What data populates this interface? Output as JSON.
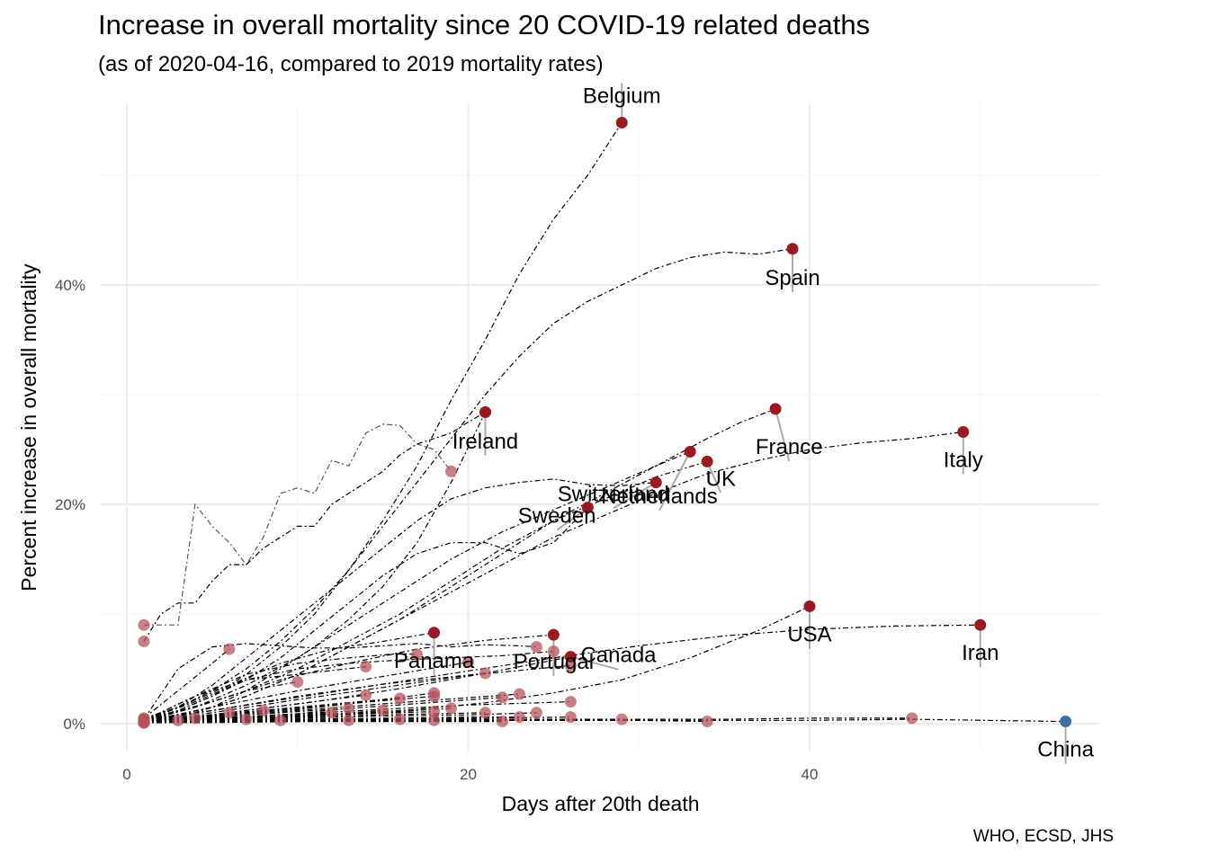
{
  "chart_data": {
    "type": "line",
    "title": "Increase in overall mortality since 20 COVID-19 related deaths",
    "subtitle": "(as of 2020-04-16, compared to 2019 mortality rates)",
    "caption": "WHO, ECSD, JHS",
    "xlabel": "Days after 20th death",
    "ylabel": "Percent increase in overall mortality",
    "xlim": [
      -1.5,
      57
    ],
    "ylim": [
      -2.5,
      56.5
    ],
    "x_ticks": [
      0,
      20,
      40
    ],
    "x_tick_labels": [
      "0",
      "20",
      "40"
    ],
    "y_ticks": [
      0,
      20,
      40
    ],
    "y_tick_labels": [
      "0%",
      "20%",
      "40%"
    ],
    "grid": true,
    "legend": "none",
    "colors": {
      "highlight_point": "#9b1a22",
      "other_point": "#b5545c",
      "china_point": "#3b6ea5",
      "line": "#000000",
      "grid": "#ebebeb",
      "label_segment": "#aaaaaa"
    },
    "labeled_series": [
      {
        "name": "Belgium",
        "x": [
          1,
          3,
          5,
          7,
          9,
          11,
          13,
          15,
          17,
          19,
          21,
          23,
          25,
          27,
          29
        ],
        "y": [
          0.4,
          1.2,
          2.5,
          4.5,
          7,
          10,
          14,
          18.5,
          23.5,
          29.5,
          35,
          41,
          46,
          50,
          54.8
        ],
        "label_dx": 0,
        "label_dy": 1.8
      },
      {
        "name": "Spain",
        "x": [
          1,
          3,
          5,
          7,
          9,
          11,
          13,
          15,
          17,
          19,
          21,
          23,
          25,
          27,
          29,
          31,
          33,
          35,
          37,
          39
        ],
        "y": [
          0.5,
          1.5,
          3,
          5,
          7.5,
          10.5,
          14,
          18,
          22,
          26,
          30,
          33.5,
          36.5,
          38.5,
          40,
          41.5,
          42.5,
          43,
          42.8,
          43.3
        ],
        "label_dx": 0,
        "label_dy": -3.3
      },
      {
        "name": "Ireland",
        "x": [
          1,
          3,
          5,
          7,
          9,
          11,
          13,
          15,
          17,
          19,
          21
        ],
        "y": [
          0.3,
          0.8,
          1.5,
          3,
          5,
          7,
          9.5,
          12.5,
          16.5,
          22,
          28.4
        ],
        "label_dx": 0,
        "label_dy": -3.3
      },
      {
        "name": "France",
        "x": [
          1,
          4,
          7,
          10,
          13,
          16,
          19,
          22,
          25,
          28,
          31,
          34,
          36,
          38
        ],
        "y": [
          0.3,
          1,
          2.5,
          4.5,
          7,
          9.5,
          12.5,
          15.5,
          18.5,
          21,
          23.5,
          26,
          27.5,
          28.7
        ],
        "label_dx": 0.8,
        "label_dy": -4.1
      },
      {
        "name": "Italy",
        "x": [
          1,
          4,
          7,
          10,
          13,
          16,
          19,
          22,
          25,
          28,
          31,
          34,
          37,
          40,
          43,
          46,
          49
        ],
        "y": [
          0.3,
          1,
          2.5,
          4.5,
          7,
          9.5,
          12,
          14.5,
          17,
          19,
          21,
          22.8,
          24,
          25,
          25.6,
          26,
          26.6
        ],
        "label_dx": 0,
        "label_dy": -3.2
      },
      {
        "name": "Netherlands",
        "x": [
          1,
          4,
          7,
          10,
          13,
          16,
          19,
          22,
          25,
          28,
          31,
          33
        ],
        "y": [
          0.3,
          1.5,
          3.5,
          6,
          9,
          12,
          15,
          17.5,
          19.5,
          21.5,
          23.5,
          24.8
        ],
        "label_dx": -1.8,
        "label_dy": -4.7
      },
      {
        "name": "UK",
        "x": [
          1,
          4,
          7,
          10,
          13,
          16,
          19,
          22,
          25,
          28,
          31,
          34
        ],
        "y": [
          0.3,
          1.5,
          3,
          5,
          7.5,
          10,
          13,
          16,
          18.5,
          20.5,
          22.5,
          23.9
        ],
        "label_dx": 0.8,
        "label_dy": -2.2
      },
      {
        "name": "Switzerland",
        "x": [
          1,
          3,
          5,
          7,
          9,
          11,
          13,
          15,
          17,
          19,
          21,
          23,
          25,
          27,
          29,
          31
        ],
        "y": [
          0.4,
          1.5,
          3.5,
          6,
          8.5,
          11,
          13.5,
          16,
          18.5,
          20.5,
          21.5,
          22,
          22.3,
          21.8,
          21.7,
          22.0
        ],
        "label_dx": -2.5,
        "label_dy": -1.7
      },
      {
        "name": "Sweden",
        "x": [
          1,
          3,
          5,
          7,
          9,
          11,
          13,
          15,
          17,
          19,
          21,
          23,
          25,
          27
        ],
        "y": [
          0.3,
          1.2,
          2.5,
          4,
          6,
          8.5,
          11,
          13.5,
          15.5,
          16.5,
          16.5,
          15.5,
          16.5,
          19.7
        ],
        "label_dx": -1.8,
        "label_dy": -1.4
      },
      {
        "name": "USA",
        "x": [
          1,
          5,
          9,
          13,
          17,
          21,
          25,
          29,
          33,
          37,
          40
        ],
        "y": [
          0.2,
          0.4,
          0.6,
          0.9,
          1.3,
          1.9,
          2.8,
          4,
          6,
          8.5,
          10.7
        ],
        "label_dx": 0,
        "label_dy": -3.2
      },
      {
        "name": "Iran",
        "x": [
          1,
          5,
          10,
          15,
          20,
          25,
          30,
          35,
          40,
          45,
          50
        ],
        "y": [
          0.4,
          1.2,
          2.4,
          3.6,
          4.8,
          6,
          7.1,
          8,
          8.6,
          8.9,
          9.0
        ],
        "label_dx": 0,
        "label_dy": -3.2
      },
      {
        "name": "Panama",
        "x": [
          1,
          3,
          6,
          9,
          12,
          15,
          18
        ],
        "y": [
          0.3,
          1.5,
          3.5,
          5.5,
          6.8,
          7.5,
          8.3
        ],
        "label_dx": 0,
        "label_dy": -3.2
      },
      {
        "name": "Portugal",
        "x": [
          1,
          5,
          9,
          13,
          17,
          21,
          25
        ],
        "y": [
          0.3,
          2,
          4,
          5.5,
          6.8,
          7.6,
          8.1
        ],
        "label_dx": 0,
        "label_dy": -3.1
      },
      {
        "name": "Canada",
        "x": [
          1,
          6,
          11,
          16,
          21,
          26
        ],
        "y": [
          0.2,
          1,
          2,
          3.2,
          4.6,
          6.1
        ],
        "label_dx": 2.8,
        "label_dy": -0.5
      },
      {
        "name": "China",
        "x": [
          1,
          10,
          20,
          30,
          40,
          46,
          55
        ],
        "y": [
          0.1,
          0.3,
          0.3,
          0.3,
          0.3,
          0.4,
          0.2
        ],
        "label_dx": 0,
        "label_dy": -3.2
      }
    ],
    "other_series": [
      {
        "x": [
          1,
          2,
          3,
          4,
          5,
          6,
          7,
          8,
          9,
          10,
          11,
          12,
          13,
          14,
          15,
          16,
          17,
          18,
          19
        ],
        "y": [
          9,
          9,
          9,
          20,
          18,
          16.5,
          14.5,
          17,
          21,
          21.5,
          21,
          24,
          23.5,
          26.5,
          27.3,
          27.2,
          25.5,
          25,
          23
        ],
        "gray": true
      },
      {
        "x": [
          1,
          2,
          3,
          4,
          5,
          6,
          7,
          8,
          9,
          10,
          11,
          12,
          13,
          14,
          15,
          16,
          17,
          18,
          19,
          20,
          21
        ],
        "y": [
          7.5,
          10,
          11,
          11,
          13,
          14.5,
          14.5,
          16,
          17,
          18,
          18,
          20,
          21,
          22,
          23,
          24.5,
          25.5,
          26,
          26.5,
          27.5,
          28.4
        ]
      },
      {
        "x": [
          1,
          3,
          5,
          7,
          9,
          11,
          13,
          15,
          17,
          19,
          21,
          23,
          24
        ],
        "y": [
          0.4,
          5,
          7,
          7.3,
          7.1,
          6.9,
          6.9,
          7.1,
          7.3,
          7.0,
          7.2,
          7.1,
          7.0
        ]
      },
      {
        "x": [
          1,
          3,
          5,
          6
        ],
        "y": [
          0.5,
          3,
          5.5,
          6.8
        ]
      },
      {
        "x": [
          1,
          4,
          7,
          10,
          13,
          16,
          19,
          22,
          25
        ],
        "y": [
          0.3,
          2,
          4,
          5,
          5.5,
          5.8,
          6,
          6.2,
          6.6
        ]
      },
      {
        "x": [
          1,
          4,
          7,
          10,
          13,
          16,
          17
        ],
        "y": [
          0.3,
          2.5,
          4.5,
          5.5,
          6,
          6.4,
          6.3
        ]
      },
      {
        "x": [
          1,
          4,
          7,
          10,
          14
        ],
        "y": [
          0.3,
          2.5,
          4,
          4.5,
          5.2
        ]
      },
      {
        "x": [
          1,
          5,
          10,
          15,
          20
        ],
        "y": [
          0.2,
          1.5,
          3,
          4.3,
          5.6
        ]
      },
      {
        "x": [
          1,
          5,
          10,
          15,
          21
        ],
        "y": [
          0.2,
          1.2,
          2.5,
          3.6,
          4.6
        ]
      },
      {
        "x": [
          1,
          5,
          10,
          15,
          20,
          26
        ],
        "y": [
          0.2,
          1,
          2.2,
          3.3,
          4.4,
          5.3
        ]
      },
      {
        "x": [
          1,
          4,
          7,
          10
        ],
        "y": [
          0.2,
          1.5,
          3,
          3.8
        ]
      },
      {
        "x": [
          1,
          5,
          10,
          14
        ],
        "y": [
          0.2,
          0.8,
          1.8,
          2.6
        ]
      },
      {
        "x": [
          1,
          5,
          10,
          15,
          18
        ],
        "y": [
          0.2,
          0.8,
          1.5,
          2.2,
          2.8
        ]
      },
      {
        "x": [
          1,
          5,
          10,
          15,
          18
        ],
        "y": [
          0.2,
          0.7,
          1.4,
          2.1,
          2.5
        ]
      },
      {
        "x": [
          1,
          5,
          10,
          16
        ],
        "y": [
          0.2,
          0.7,
          1.3,
          2.3
        ]
      },
      {
        "x": [
          1,
          5,
          10,
          15,
          22
        ],
        "y": [
          0.2,
          0.6,
          1.1,
          1.6,
          2.4
        ]
      },
      {
        "x": [
          1,
          5,
          10,
          15,
          23
        ],
        "y": [
          0.2,
          0.6,
          1.2,
          1.8,
          2.7
        ]
      },
      {
        "x": [
          1,
          5,
          10,
          15,
          20,
          26
        ],
        "y": [
          0.2,
          0.5,
          0.9,
          1.3,
          1.7,
          2.0
        ]
      },
      {
        "x": [
          1,
          4,
          6
        ],
        "y": [
          0.2,
          0.6,
          1.0
        ]
      },
      {
        "x": [
          1,
          4,
          8
        ],
        "y": [
          0.2,
          0.5,
          1.2
        ]
      },
      {
        "x": [
          1,
          5,
          10,
          12
        ],
        "y": [
          0.2,
          0.5,
          0.8,
          1.0
        ]
      },
      {
        "x": [
          1,
          5,
          10,
          15,
          19
        ],
        "y": [
          0.2,
          0.4,
          0.7,
          1.0,
          1.4
        ]
      },
      {
        "x": [
          1,
          5,
          10,
          13
        ],
        "y": [
          0.2,
          0.5,
          0.9,
          1.4
        ]
      },
      {
        "x": [
          1,
          5,
          10,
          15
        ],
        "y": [
          0.2,
          0.4,
          0.7,
          1.2
        ]
      },
      {
        "x": [
          1,
          5,
          10,
          18
        ],
        "y": [
          0.2,
          0.4,
          0.7,
          1.1
        ]
      },
      {
        "x": [
          1,
          5,
          10,
          15,
          21
        ],
        "y": [
          0.2,
          0.4,
          0.6,
          0.8,
          1.0
        ]
      },
      {
        "x": [
          1,
          5,
          10,
          15,
          20,
          24
        ],
        "y": [
          0.2,
          0.3,
          0.5,
          0.7,
          0.8,
          1.0
        ]
      },
      {
        "x": [
          1,
          5,
          10,
          15,
          20,
          23
        ],
        "y": [
          0.2,
          0.3,
          0.4,
          0.5,
          0.6,
          0.6
        ]
      },
      {
        "x": [
          1,
          5,
          10,
          15,
          20,
          25,
          30,
          34
        ],
        "y": [
          0.1,
          0.2,
          0.2,
          0.3,
          0.3,
          0.3,
          0.3,
          0.2
        ]
      },
      {
        "x": [
          1,
          5,
          10,
          15,
          20,
          25,
          29
        ],
        "y": [
          0.1,
          0.2,
          0.3,
          0.3,
          0.4,
          0.4,
          0.4
        ]
      },
      {
        "x": [
          1,
          5,
          10,
          15,
          20,
          26
        ],
        "y": [
          0.1,
          0.2,
          0.3,
          0.4,
          0.5,
          0.6
        ]
      },
      {
        "x": [
          1,
          5,
          10,
          15,
          20,
          25,
          30,
          35,
          40,
          46
        ],
        "y": [
          0.1,
          0.2,
          0.2,
          0.3,
          0.3,
          0.3,
          0.4,
          0.4,
          0.5,
          0.5
        ]
      },
      {
        "x": [
          1,
          4,
          7
        ],
        "y": [
          0.1,
          0.3,
          0.4
        ]
      },
      {
        "x": [
          1,
          4,
          9
        ],
        "y": [
          0.1,
          0.2,
          0.3
        ]
      },
      {
        "x": [
          1,
          5,
          13
        ],
        "y": [
          0.1,
          0.2,
          0.3
        ]
      },
      {
        "x": [
          1,
          5,
          10,
          16
        ],
        "y": [
          0.1,
          0.2,
          0.3,
          0.4
        ]
      },
      {
        "x": [
          1,
          5,
          10,
          18
        ],
        "y": [
          0.1,
          0.2,
          0.2,
          0.3
        ]
      },
      {
        "x": [
          1,
          5,
          10,
          15,
          22
        ],
        "y": [
          0.1,
          0.1,
          0.2,
          0.2,
          0.2
        ]
      },
      {
        "x": [
          1,
          3,
          4
        ],
        "y": [
          0.1,
          0.3,
          0.5
        ]
      },
      {
        "x": [
          1,
          3
        ],
        "y": [
          0.1,
          0.3
        ]
      }
    ]
  }
}
